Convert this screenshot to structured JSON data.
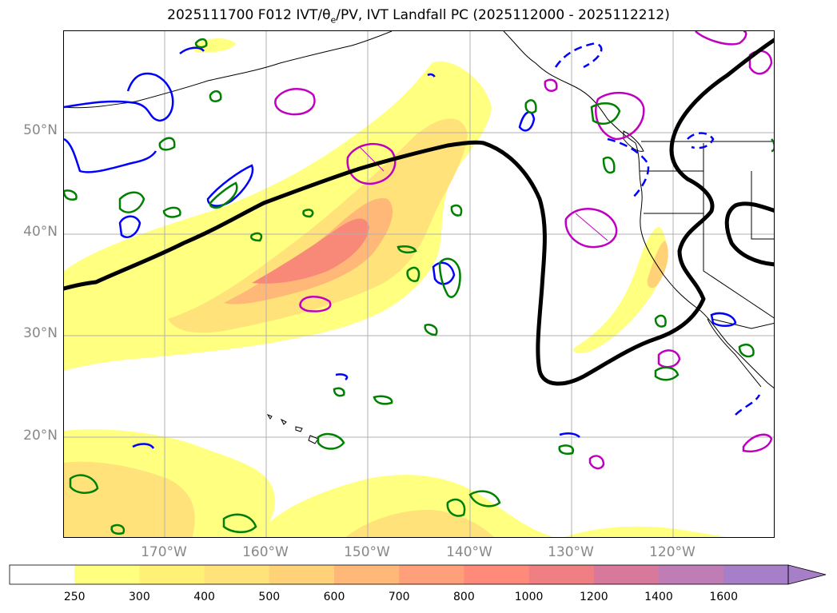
{
  "title": {
    "prefix": "2025111700 F012 IVT/θ",
    "sub": "e",
    "suffix": "/PV, IVT Landfall PC (2025112000 - 2025112212)"
  },
  "map": {
    "lat_labels": [
      "50°N",
      "40°N",
      "30°N",
      "20°N"
    ],
    "lon_labels": [
      "170°W",
      "160°W",
      "150°W",
      "140°W",
      "130°W",
      "120°W"
    ],
    "colors": {
      "ivt_fills": [
        "#ffff80",
        "#fff176",
        "#ffe27a",
        "#ffd278",
        "#ffb877",
        "#ffa07a",
        "#ff8a7a",
        "#f07f84",
        "#d8789a",
        "#c07cb4",
        "#a77fc8"
      ],
      "pc_contour": "#000000",
      "theta_e_contour": "#008000",
      "pv_contour": "#0000ff",
      "magenta_contour": "#c000c0",
      "coastline": "#000000",
      "grid": "#b0b0b0"
    },
    "grid": true
  },
  "colorbar": {
    "ticks": [
      "250",
      "300",
      "400",
      "500",
      "600",
      "700",
      "800",
      "1000",
      "1200",
      "1400",
      "1600"
    ],
    "colors": [
      "#ffffff",
      "#ffff80",
      "#fff176",
      "#ffe27a",
      "#ffd278",
      "#ffb877",
      "#ffa07a",
      "#ff8a7a",
      "#f07f84",
      "#d8789a",
      "#c07cb4",
      "#a77fc8"
    ],
    "extend": "max"
  }
}
